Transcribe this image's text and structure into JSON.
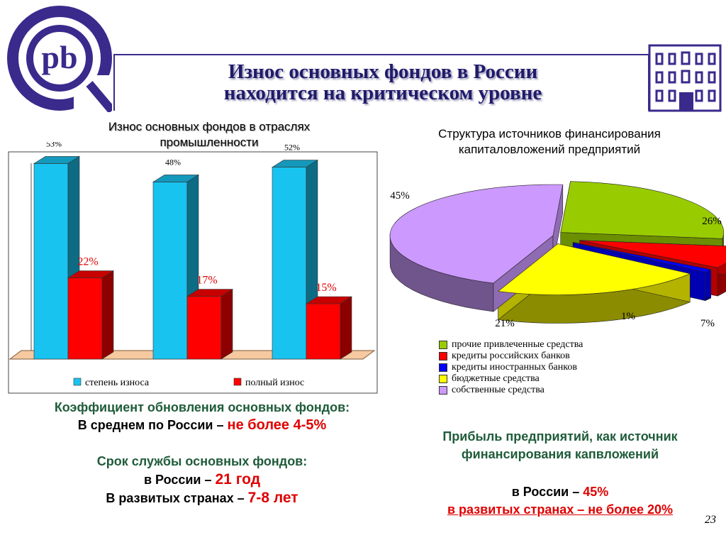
{
  "header": {
    "title_line1": "Износ основных фондов в России",
    "title_line2": "находится на критическом уровне",
    "logo_letters": "pb"
  },
  "left_chart_title": {
    "line1": "Износ основных фондов в отраслях",
    "line2": "промышленности"
  },
  "right_chart_title": {
    "line1": "Структура источников финансирования",
    "line2": "капиталовложений предприятий"
  },
  "chart_data": [
    {
      "type": "bar",
      "title": "Износ основных фондов в отраслях промышленности",
      "categories": [
        "",
        "",
        ""
      ],
      "series": [
        {
          "name": "степень износа",
          "values": [
            53,
            48,
            52
          ],
          "labels": [
            "53%",
            "48%",
            "52%"
          ],
          "color": "#19c3f0"
        },
        {
          "name": "полный износ",
          "values": [
            22,
            17,
            15
          ],
          "labels": [
            "22%",
            "17%",
            "15%"
          ],
          "color": "#ff0000"
        }
      ],
      "ylim": [
        0,
        60
      ],
      "legend": "bottom"
    },
    {
      "type": "pie",
      "title": "Структура источников финансирования капиталовложений предприятий",
      "slices": [
        {
          "label": "прочие привлеченные средства",
          "value": 26,
          "text": "26%",
          "color": "#99cc00"
        },
        {
          "label": "кредиты российских банков",
          "value": 7,
          "text": "7%",
          "color": "#ff0000"
        },
        {
          "label": "кредиты иностранных банков",
          "value": 1,
          "text": "1%",
          "color": "#0000ff"
        },
        {
          "label": "бюджетные средства",
          "value": 21,
          "text": "21%",
          "color": "#ffff00"
        },
        {
          "label": "собственные средства",
          "value": 45,
          "text": "45%",
          "color": "#cc99ff"
        }
      ],
      "legend": "bottom"
    }
  ],
  "left_info": {
    "coef_title": "Коэффициент обновления основных фондов:",
    "coef_prefix": "В среднем по России – ",
    "coef_value": "не более 4-5%",
    "life_title": "Срок службы основных фондов:",
    "life_russia_prefix": "в России – ",
    "life_russia_value": "21 год",
    "life_dev_prefix": "В развитых странах – ",
    "life_dev_value": "7-8 лет"
  },
  "right_info": {
    "profit_line1": "Прибыль предприятий, как источник",
    "profit_line2": "финансирования капвложений",
    "russia_prefix": "в России – ",
    "russia_value": "45%",
    "developed": "в развитых странах  – не более 20%"
  },
  "page_number": "23",
  "colors": {
    "title": "#201a6a",
    "header_line": "#3a2a8c",
    "green_text": "#1f5c3a",
    "red_text": "#e00000"
  }
}
